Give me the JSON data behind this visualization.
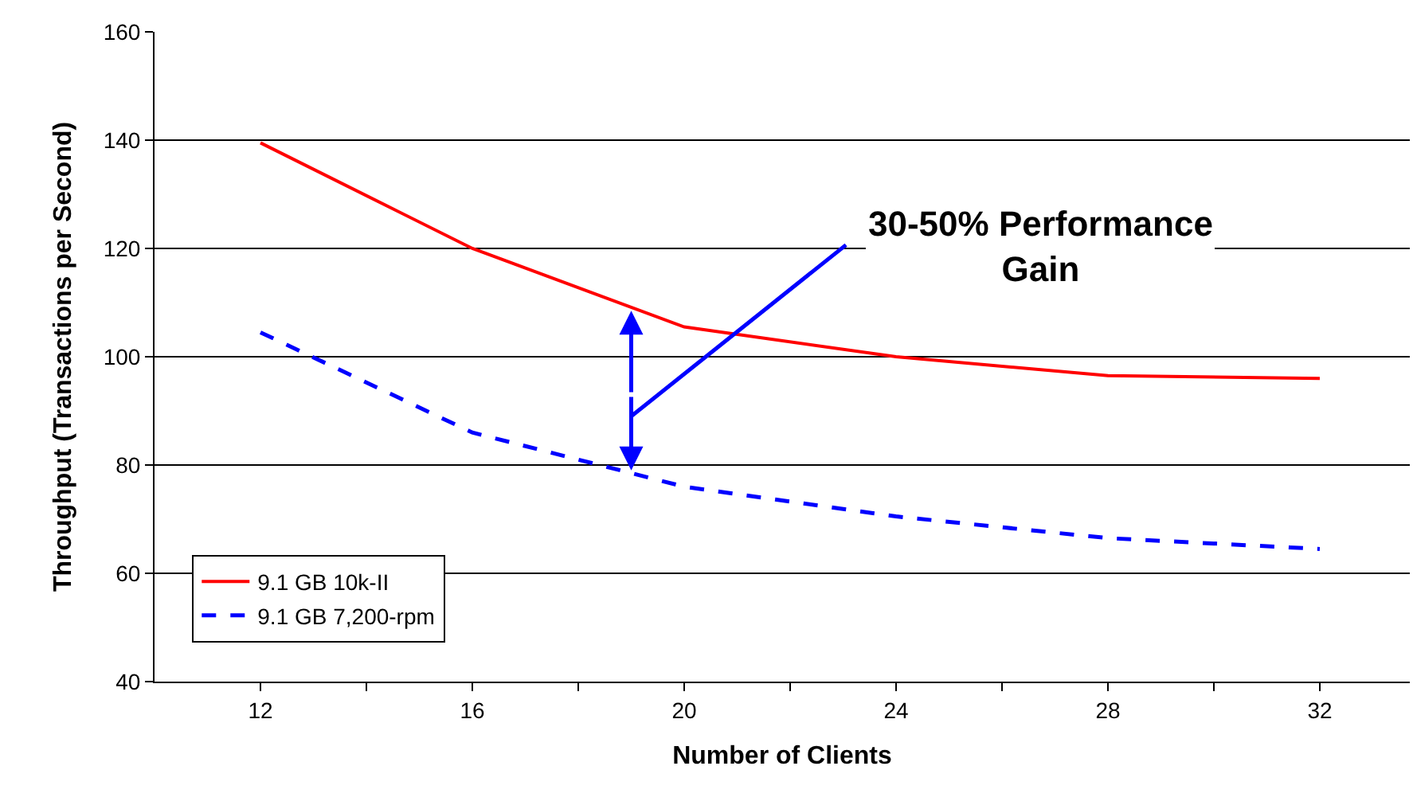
{
  "chart_data": {
    "type": "line",
    "xlabel": "Number of Clients",
    "ylabel": "Throughput (Transactions per Second)",
    "x": [
      12,
      16,
      20,
      24,
      28,
      32
    ],
    "series": [
      {
        "name": "9.1 GB 10k-II",
        "color": "#ff0000",
        "values": [
          139.5,
          120,
          105.5,
          100,
          96.5,
          96
        ],
        "line_style": "solid"
      },
      {
        "name": "9.1 GB 7,200-rpm",
        "color": "#0000ff",
        "values": [
          104.5,
          86,
          76,
          70.5,
          66.5,
          64.5
        ],
        "line_style": "dashed"
      }
    ],
    "annotations": [
      "30-50% Performance Gain"
    ],
    "xlim": [
      10,
      33.7
    ],
    "xticks": [
      12,
      {
        "value": 14,
        "label": null
      },
      16,
      {
        "value": 18,
        "label": null
      },
      20,
      {
        "value": 22,
        "label": null
      },
      24,
      {
        "value": 26,
        "label": null
      },
      28,
      {
        "value": 30,
        "label": null
      },
      32
    ],
    "ylim": [
      40,
      160
    ],
    "yticks": [
      40,
      60,
      80,
      100,
      120,
      140,
      160
    ],
    "grid": "y",
    "legend": "bottom left",
    "marker": "none"
  }
}
